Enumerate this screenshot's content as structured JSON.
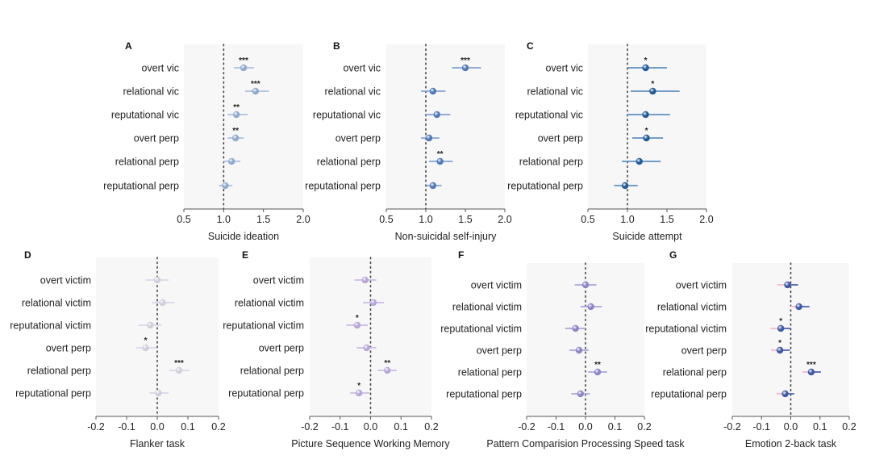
{
  "chart_data": [
    {
      "panel": "A",
      "type": "forest",
      "xlabel": "Suicide ideation",
      "xlim": [
        0.5,
        2.0
      ],
      "ticks": [
        "0.5",
        "1.0",
        "1.5",
        "2.0"
      ],
      "tick_values": [
        0.5,
        1.0,
        1.5,
        2.0
      ],
      "reference_line": 1.0,
      "colors": {
        "point": "#8eaacc",
        "ci": "#aac1dd"
      },
      "rows": [
        {
          "label": "overt vic",
          "estimate": 1.25,
          "ci": [
            1.13,
            1.38
          ],
          "sig": "***"
        },
        {
          "label": "relational vic",
          "estimate": 1.4,
          "ci": [
            1.27,
            1.57
          ],
          "sig": "***"
        },
        {
          "label": "reputational vic",
          "estimate": 1.16,
          "ci": [
            1.05,
            1.3
          ],
          "sig": "**"
        },
        {
          "label": "overt perp",
          "estimate": 1.15,
          "ci": [
            1.05,
            1.25
          ],
          "sig": "**"
        },
        {
          "label": "relational perp",
          "estimate": 1.1,
          "ci": [
            0.99,
            1.21
          ],
          "sig": ""
        },
        {
          "label": "reputational perp",
          "estimate": 1.02,
          "ci": [
            0.94,
            1.11
          ],
          "sig": ""
        }
      ]
    },
    {
      "panel": "B",
      "type": "forest",
      "xlabel": "Non-suicidal self-injury",
      "xlim": [
        0.5,
        2.0
      ],
      "ticks": [
        "0.5",
        "1.0",
        "1.5",
        "2.0"
      ],
      "tick_values": [
        0.5,
        1.0,
        1.5,
        2.0
      ],
      "reference_line": 1.0,
      "colors": {
        "point": "#4f79bb",
        "ci": "#84a3d3"
      },
      "rows": [
        {
          "label": "overt vic",
          "estimate": 1.5,
          "ci": [
            1.33,
            1.7
          ],
          "sig": "***"
        },
        {
          "label": "relational vic",
          "estimate": 1.09,
          "ci": [
            0.94,
            1.25
          ],
          "sig": ""
        },
        {
          "label": "reputational vic",
          "estimate": 1.14,
          "ci": [
            1.0,
            1.31
          ],
          "sig": ""
        },
        {
          "label": "overt perp",
          "estimate": 1.04,
          "ci": [
            0.94,
            1.17
          ],
          "sig": ""
        },
        {
          "label": "relational perp",
          "estimate": 1.18,
          "ci": [
            1.04,
            1.34
          ],
          "sig": "**"
        },
        {
          "label": "reputational perp",
          "estimate": 1.09,
          "ci": [
            1.01,
            1.2
          ],
          "sig": ""
        }
      ]
    },
    {
      "panel": "C",
      "type": "forest",
      "xlabel": "Suicide attempt",
      "xlim": [
        0.5,
        2.0
      ],
      "ticks": [
        "0.5",
        "1.0",
        "1.5",
        "2.0"
      ],
      "tick_values": [
        0.5,
        1.0,
        1.5,
        2.0
      ],
      "reference_line": 1.0,
      "colors": {
        "point": "#1f5a99",
        "ci": "#5f90c2"
      },
      "rows": [
        {
          "label": "overt vic",
          "estimate": 1.23,
          "ci": [
            1.01,
            1.5
          ],
          "sig": "*"
        },
        {
          "label": "relational vic",
          "estimate": 1.32,
          "ci": [
            1.04,
            1.66
          ],
          "sig": "*"
        },
        {
          "label": "reputational vic",
          "estimate": 1.23,
          "ci": [
            0.99,
            1.54
          ],
          "sig": ""
        },
        {
          "label": "overt perp",
          "estimate": 1.24,
          "ci": [
            1.06,
            1.45
          ],
          "sig": "*"
        },
        {
          "label": "relational perp",
          "estimate": 1.15,
          "ci": [
            0.93,
            1.42
          ],
          "sig": ""
        },
        {
          "label": "reputational perp",
          "estimate": 0.97,
          "ci": [
            0.83,
            1.13
          ],
          "sig": ""
        }
      ]
    },
    {
      "panel": "D",
      "type": "forest",
      "xlabel": "Flanker task",
      "xlim": [
        -0.2,
        0.2
      ],
      "ticks": [
        "-0.2",
        "-0.1",
        "0.0",
        "0.1",
        "0.2"
      ],
      "tick_values": [
        -0.2,
        -0.1,
        0.0,
        0.1,
        0.2
      ],
      "reference_line": 0.0,
      "colors": {
        "point": "#cfcfdc",
        "ci": "#dcd6ea"
      },
      "rows": [
        {
          "label": "overt victim",
          "estimate": 0.0,
          "ci": [
            -0.038,
            0.037
          ],
          "sig": ""
        },
        {
          "label": "relational victim",
          "estimate": 0.017,
          "ci": [
            -0.018,
            0.055
          ],
          "sig": ""
        },
        {
          "label": "reputational victim",
          "estimate": -0.023,
          "ci": [
            -0.061,
            0.015
          ],
          "sig": ""
        },
        {
          "label": "overt perp",
          "estimate": -0.038,
          "ci": [
            -0.069,
            -0.005
          ],
          "sig": "*"
        },
        {
          "label": "relational perp",
          "estimate": 0.071,
          "ci": [
            0.039,
            0.105
          ],
          "sig": "***"
        },
        {
          "label": "reputational perp",
          "estimate": 0.004,
          "ci": [
            -0.025,
            0.037
          ],
          "sig": ""
        }
      ]
    },
    {
      "panel": "E",
      "type": "forest",
      "xlabel": "Picture Sequence Working Memory",
      "xlim": [
        -0.2,
        0.2
      ],
      "ticks": [
        "-0.2",
        "-0.1",
        "0.0",
        "0.1",
        "0.2"
      ],
      "tick_values": [
        -0.2,
        -0.1,
        0.0,
        0.1,
        0.2
      ],
      "reference_line": 0.0,
      "colors": {
        "point": "#b9a6d8",
        "ci": "#cbbde3"
      },
      "rows": [
        {
          "label": "overt victim",
          "estimate": -0.018,
          "ci": [
            -0.053,
            0.019
          ],
          "sig": ""
        },
        {
          "label": "relational victim",
          "estimate": 0.009,
          "ci": [
            -0.025,
            0.044
          ],
          "sig": ""
        },
        {
          "label": "reputational victim",
          "estimate": -0.044,
          "ci": [
            -0.08,
            -0.009
          ],
          "sig": "*"
        },
        {
          "label": "overt perp",
          "estimate": -0.013,
          "ci": [
            -0.045,
            0.019
          ],
          "sig": ""
        },
        {
          "label": "relational perp",
          "estimate": 0.055,
          "ci": [
            0.024,
            0.086
          ],
          "sig": "**"
        },
        {
          "label": "reputational perp",
          "estimate": -0.038,
          "ci": [
            -0.067,
            -0.004
          ],
          "sig": "*"
        }
      ]
    },
    {
      "panel": "F",
      "type": "forest",
      "xlabel": "Pattern Comparision Processing Speed task",
      "xlim": [
        -0.2,
        0.2
      ],
      "ticks": [
        "-0.2",
        "-0.1",
        "0.0",
        "0.1",
        "0.2"
      ],
      "tick_values": [
        -0.2,
        -0.1,
        0.0,
        0.1,
        0.2
      ],
      "reference_line": 0.0,
      "colors": {
        "point": "#8a84c8",
        "ci": "#aaa5da"
      },
      "rows": [
        {
          "label": "overt victim",
          "estimate": 0.0,
          "ci": [
            -0.037,
            0.037
          ],
          "sig": ""
        },
        {
          "label": "relational victim",
          "estimate": 0.018,
          "ci": [
            -0.017,
            0.055
          ],
          "sig": ""
        },
        {
          "label": "reputational victim",
          "estimate": -0.034,
          "ci": [
            -0.069,
            0.0
          ],
          "sig": ""
        },
        {
          "label": "overt perp",
          "estimate": -0.022,
          "ci": [
            -0.055,
            0.011
          ],
          "sig": ""
        },
        {
          "label": "relational perp",
          "estimate": 0.041,
          "ci": [
            0.009,
            0.073
          ],
          "sig": "**"
        },
        {
          "label": "reputational perp",
          "estimate": -0.017,
          "ci": [
            -0.048,
            0.015
          ],
          "sig": ""
        }
      ]
    },
    {
      "panel": "G",
      "type": "forest",
      "xlabel": "Emotion 2-back task",
      "xlim": [
        -0.2,
        0.2
      ],
      "ticks": [
        "-0.2",
        "-0.1",
        "0.0",
        "0.1",
        "0.2"
      ],
      "tick_values": [
        -0.2,
        -0.1,
        0.0,
        0.1,
        0.2
      ],
      "reference_line": 0.0,
      "colors": {
        "point": "#3d5aa8",
        "ci": "#4a68b5",
        "ci_left": "#f2b9c9"
      },
      "rows": [
        {
          "label": "overt victim",
          "estimate": -0.011,
          "ci": [
            -0.046,
            0.025
          ],
          "sig": ""
        },
        {
          "label": "relational victim",
          "estimate": 0.028,
          "ci": [
            -0.003,
            0.064
          ],
          "sig": ""
        },
        {
          "label": "reputational victim",
          "estimate": -0.034,
          "ci": [
            -0.069,
            0.0
          ],
          "sig": "*"
        },
        {
          "label": "overt perp",
          "estimate": -0.037,
          "ci": [
            -0.067,
            -0.003
          ],
          "sig": "*"
        },
        {
          "label": "relational perp",
          "estimate": 0.07,
          "ci": [
            0.039,
            0.103
          ],
          "sig": "***"
        },
        {
          "label": "reputational perp",
          "estimate": -0.019,
          "ci": [
            -0.049,
            0.012
          ],
          "sig": ""
        }
      ]
    }
  ]
}
